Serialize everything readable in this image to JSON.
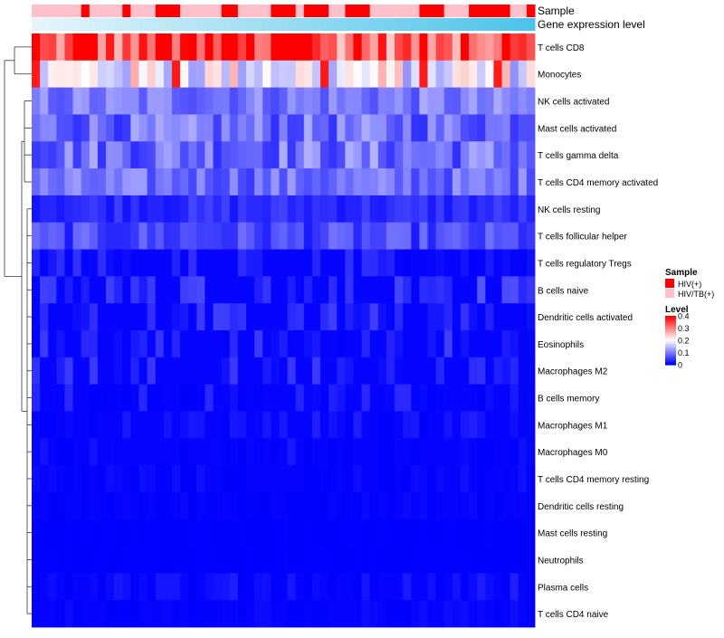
{
  "chart_data": {
    "type": "heatmap",
    "title": "",
    "annotation_tracks": [
      {
        "name": "Sample",
        "label": "Sample"
      },
      {
        "name": "Gene expression level",
        "label": "Gene expression level"
      }
    ],
    "sample_groups": {
      "HIV(+)": [
        6,
        11,
        15,
        16,
        17,
        23,
        24,
        29,
        30,
        31,
        33,
        34,
        35,
        38,
        39,
        40,
        47,
        48,
        49,
        53,
        54,
        55,
        56,
        57,
        60
      ],
      "HIV/TB(+)": [
        0,
        1,
        2,
        3,
        4,
        5,
        7,
        8,
        9,
        10,
        12,
        13,
        14,
        18,
        19,
        20,
        21,
        22,
        25,
        26,
        27,
        28,
        32,
        36,
        37,
        41,
        42,
        43,
        44,
        45,
        46,
        50,
        51,
        52,
        58,
        59
      ]
    },
    "n_columns": 61,
    "rows": [
      "T cells CD8",
      "Monocytes",
      "NK cells activated",
      "Mast cells activated",
      "T cells gamma delta",
      "T cells CD4 memory activated",
      "NK cells resting",
      "T cells follicular helper",
      "T cells regulatory  Tregs",
      "B cells naive",
      "Dendritic cells activated",
      "Eosinophils",
      "Macrophages M2",
      "B cells memory",
      "Macrophages M1",
      "Macrophages M0",
      "T cells CD4 memory resting",
      "Dendritic cells resting",
      "Mast cells resting",
      "Neutrophils",
      "Plasma cells",
      "T cells CD4 naive"
    ],
    "row_base_level": [
      0.32,
      0.19,
      0.095,
      0.085,
      0.09,
      0.085,
      0.035,
      0.055,
      0.02,
      0.045,
      0.03,
      0.025,
      0.025,
      0.015,
      0.01,
      0.008,
      0.004,
      0.002,
      0.0,
      0.0,
      0.01,
      0.004
    ],
    "row_level_spread": [
      0.08,
      0.08,
      0.04,
      0.05,
      0.055,
      0.04,
      0.02,
      0.035,
      0.02,
      0.025,
      0.02,
      0.025,
      0.022,
      0.02,
      0.015,
      0.012,
      0.008,
      0.006,
      0.001,
      0.001,
      0.015,
      0.008
    ],
    "legend": {
      "sample_title": "Sample",
      "sample_entries": [
        {
          "label": "HIV(+)",
          "color": "#ff0000"
        },
        {
          "label": "HIV/TB(+)",
          "color": "#ffc0cb"
        }
      ],
      "level_title": "Level",
      "level_ticks": [
        0.4,
        0.3,
        0.2,
        0.1,
        0
      ],
      "level_range": [
        0,
        0.4
      ]
    },
    "colors": {
      "low": "#0000ff",
      "mid": "#ffffff",
      "high": "#ff0000",
      "expr_light": "#e6f5fb",
      "expr_dark": "#4cc3ea"
    }
  }
}
